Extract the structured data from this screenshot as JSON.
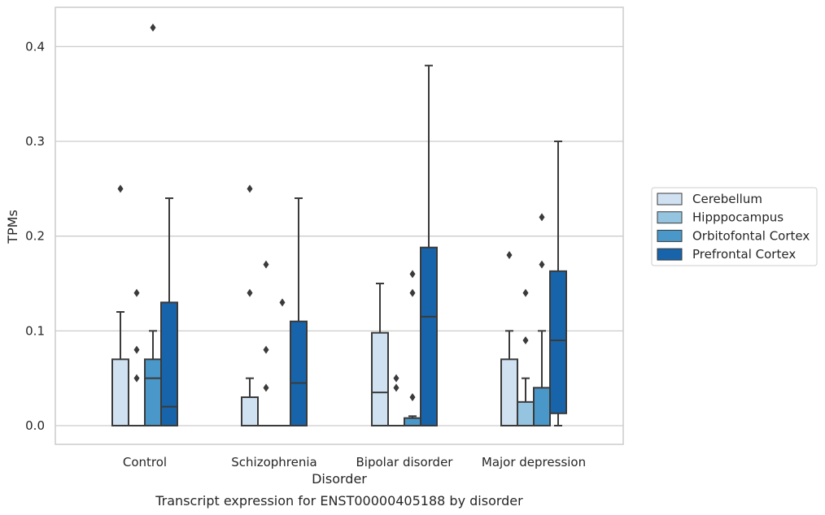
{
  "chart_data": {
    "type": "box",
    "title": "",
    "caption": "Transcript expression for ENST00000405188 by disorder",
    "xlabel": "Disorder",
    "ylabel": "TPMs",
    "ylim": [
      -0.02,
      0.44
    ],
    "yticks": [
      0.0,
      0.1,
      0.2,
      0.3,
      0.4
    ],
    "ytick_labels": [
      "0.0",
      "0.1",
      "0.2",
      "0.3",
      "0.4"
    ],
    "grid": true,
    "legend_position": "right",
    "categories": [
      "Control",
      "Schizophrenia",
      "Bipolar disorder",
      "Major depression"
    ],
    "series": [
      {
        "name": "Cerebellum",
        "color": "#d0e1f2",
        "boxes": [
          {
            "q1": 0.0,
            "median": 0.0,
            "q3": 0.07,
            "whisker_low": 0.0,
            "whisker_high": 0.12,
            "outliers": [
              0.25
            ]
          },
          {
            "q1": 0.0,
            "median": 0.0,
            "q3": 0.03,
            "whisker_low": 0.0,
            "whisker_high": 0.05,
            "outliers": [
              0.14,
              0.25
            ]
          },
          {
            "q1": 0.0,
            "median": 0.035,
            "q3": 0.098,
            "whisker_low": 0.0,
            "whisker_high": 0.15,
            "outliers": []
          },
          {
            "q1": 0.0,
            "median": 0.0,
            "q3": 0.07,
            "whisker_low": 0.0,
            "whisker_high": 0.1,
            "outliers": [
              0.18
            ]
          }
        ]
      },
      {
        "name": "Hipppocampus",
        "color": "#94c4df",
        "boxes": [
          {
            "q1": 0.0,
            "median": 0.0,
            "q3": 0.0,
            "whisker_low": 0.0,
            "whisker_high": 0.0,
            "outliers": [
              0.05,
              0.08,
              0.14
            ]
          },
          {
            "q1": 0.0,
            "median": 0.0,
            "q3": 0.0,
            "whisker_low": 0.0,
            "whisker_high": 0.0,
            "outliers": [
              0.04,
              0.08,
              0.17
            ]
          },
          {
            "q1": 0.0,
            "median": 0.0,
            "q3": 0.0,
            "whisker_low": 0.0,
            "whisker_high": 0.0,
            "outliers": [
              0.04,
              0.05
            ]
          },
          {
            "q1": 0.0,
            "median": 0.0,
            "q3": 0.025,
            "whisker_low": 0.0,
            "whisker_high": 0.05,
            "outliers": [
              0.09,
              0.14
            ]
          }
        ]
      },
      {
        "name": "Orbitofontal Cortex",
        "color": "#4a98c9",
        "boxes": [
          {
            "q1": 0.0,
            "median": 0.05,
            "q3": 0.07,
            "whisker_low": 0.0,
            "whisker_high": 0.1,
            "outliers": [
              0.42
            ]
          },
          {
            "q1": 0.0,
            "median": 0.0,
            "q3": 0.0,
            "whisker_low": 0.0,
            "whisker_high": 0.0,
            "outliers": [
              0.13
            ]
          },
          {
            "q1": 0.0,
            "median": 0.0,
            "q3": 0.008,
            "whisker_low": 0.0,
            "whisker_high": 0.01,
            "outliers": [
              0.03,
              0.14,
              0.16
            ]
          },
          {
            "q1": 0.0,
            "median": 0.0,
            "q3": 0.04,
            "whisker_low": 0.0,
            "whisker_high": 0.1,
            "outliers": [
              0.17,
              0.22
            ]
          }
        ]
      },
      {
        "name": "Prefrontal Cortex",
        "color": "#1764ab",
        "boxes": [
          {
            "q1": 0.0,
            "median": 0.02,
            "q3": 0.13,
            "whisker_low": 0.0,
            "whisker_high": 0.24,
            "outliers": []
          },
          {
            "q1": 0.0,
            "median": 0.045,
            "q3": 0.11,
            "whisker_low": 0.0,
            "whisker_high": 0.24,
            "outliers": []
          },
          {
            "q1": 0.0,
            "median": 0.115,
            "q3": 0.188,
            "whisker_low": 0.0,
            "whisker_high": 0.38,
            "outliers": []
          },
          {
            "q1": 0.013,
            "median": 0.09,
            "q3": 0.163,
            "whisker_low": 0.0,
            "whisker_high": 0.3,
            "outliers": []
          }
        ]
      }
    ]
  }
}
